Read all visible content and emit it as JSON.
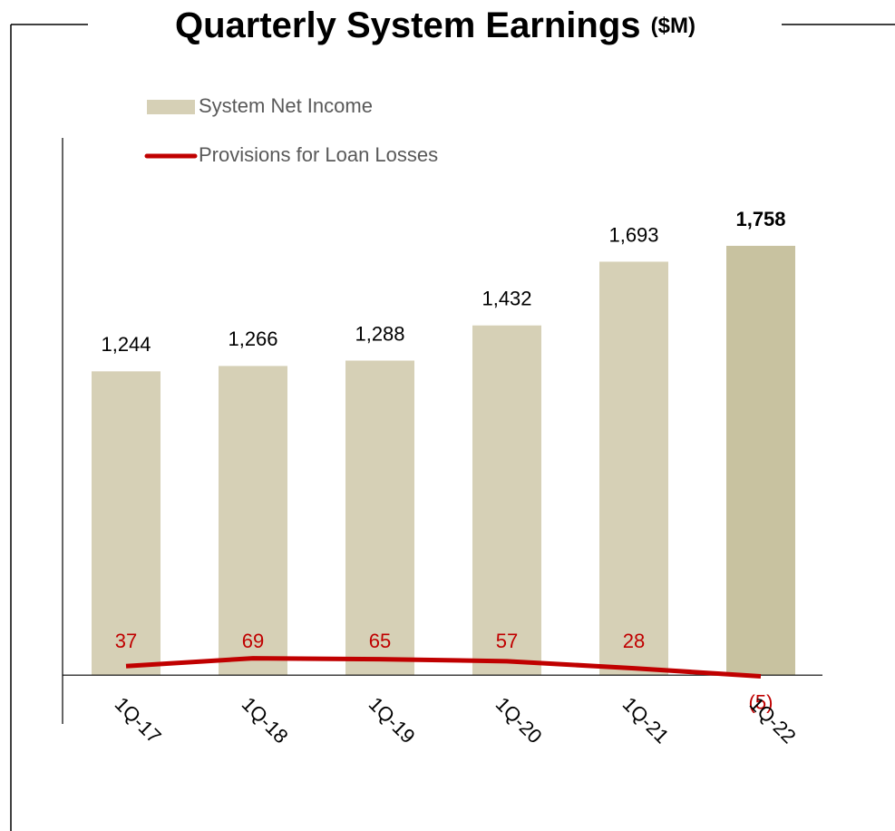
{
  "chart_data": {
    "type": "bar",
    "title": "Quarterly System Earnings",
    "title_unit": "($M)",
    "categories": [
      "1Q-17",
      "1Q-18",
      "1Q-19",
      "1Q-20",
      "1Q-21",
      "1Q-22"
    ],
    "ylim": [
      -200,
      2200
    ],
    "series": [
      {
        "name": "System Net Income",
        "type": "bar",
        "color": "#d6d0b6",
        "colors": [
          "#d6d0b6",
          "#d6d0b6",
          "#d6d0b6",
          "#d6d0b6",
          "#d6d0b6",
          "#c8c2a0"
        ],
        "values": [
          1244,
          1266,
          1288,
          1432,
          1693,
          1758
        ],
        "value_labels": [
          "1,244",
          "1,266",
          "1,288",
          "1,432",
          "1,693",
          "1,758"
        ]
      },
      {
        "name": "Provisions for Loan Losses",
        "type": "line",
        "color": "#c00000",
        "values": [
          37,
          69,
          65,
          57,
          28,
          -5
        ],
        "value_labels": [
          "37",
          "69",
          "65",
          "57",
          "28",
          "(5)"
        ]
      }
    ]
  }
}
